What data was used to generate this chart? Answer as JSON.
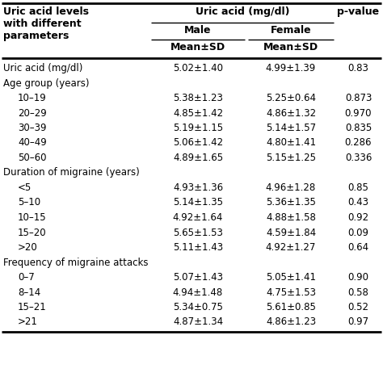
{
  "rows": [
    {
      "label": "Uric acid (mg/dl)",
      "male": "5.02±1.40",
      "female": "4.99±1.39",
      "p": "0.83",
      "indent": false,
      "header": false
    },
    {
      "label": "Age group (years)",
      "male": "",
      "female": "",
      "p": "",
      "indent": false,
      "header": true
    },
    {
      "label": "10–19",
      "male": "5.38±1.23",
      "female": "5.25±0.64",
      "p": "0.873",
      "indent": true,
      "header": false
    },
    {
      "label": "20–29",
      "male": "4.85±1.42",
      "female": "4.86±1.32",
      "p": "0.970",
      "indent": true,
      "header": false
    },
    {
      "label": "30–39",
      "male": "5.19±1.15",
      "female": "5.14±1.57",
      "p": "0.835",
      "indent": true,
      "header": false
    },
    {
      "label": "40–49",
      "male": "5.06±1.42",
      "female": "4.80±1.41",
      "p": "0.286",
      "indent": true,
      "header": false
    },
    {
      "label": "50–60",
      "male": "4.89±1.65",
      "female": "5.15±1.25",
      "p": "0.336",
      "indent": true,
      "header": false
    },
    {
      "label": "Duration of migraine (years)",
      "male": "",
      "female": "",
      "p": "",
      "indent": false,
      "header": true
    },
    {
      "label": "<5",
      "male": "4.93±1.36",
      "female": "4.96±1.28",
      "p": "0.85",
      "indent": true,
      "header": false
    },
    {
      "label": "5–10",
      "male": "5.14±1.35",
      "female": "5.36±1.35",
      "p": "0.43",
      "indent": true,
      "header": false
    },
    {
      "label": "10–15",
      "male": "4.92±1.64",
      "female": "4.88±1.58",
      "p": "0.92",
      "indent": true,
      "header": false
    },
    {
      "label": "15–20",
      "male": "5.65±1.53",
      "female": "4.59±1.84",
      "p": "0.09",
      "indent": true,
      "header": false
    },
    {
      "label": ">20",
      "male": "5.11±1.43",
      "female": "4.92±1.27",
      "p": "0.64",
      "indent": true,
      "header": false
    },
    {
      "label": "Frequency of migraine attacks",
      "male": "",
      "female": "",
      "p": "",
      "indent": false,
      "header": true
    },
    {
      "label": "0–7",
      "male": "5.07±1.43",
      "female": "5.05±1.41",
      "p": "0.90",
      "indent": true,
      "header": false
    },
    {
      "label": "8–14",
      "male": "4.94±1.48",
      "female": "4.75±1.53",
      "p": "0.58",
      "indent": true,
      "header": false
    },
    {
      "label": "15–21",
      "male": "5.34±0.75",
      "female": "5.61±0.85",
      "p": "0.52",
      "indent": true,
      "header": false
    },
    {
      "label": ">21",
      "male": "4.87±1.34",
      "female": "4.86±1.23",
      "p": "0.97",
      "indent": true,
      "header": false
    }
  ],
  "bg_color": "#ffffff",
  "text_color": "#000000",
  "fs": 8.5,
  "fs_bold": 9.0
}
